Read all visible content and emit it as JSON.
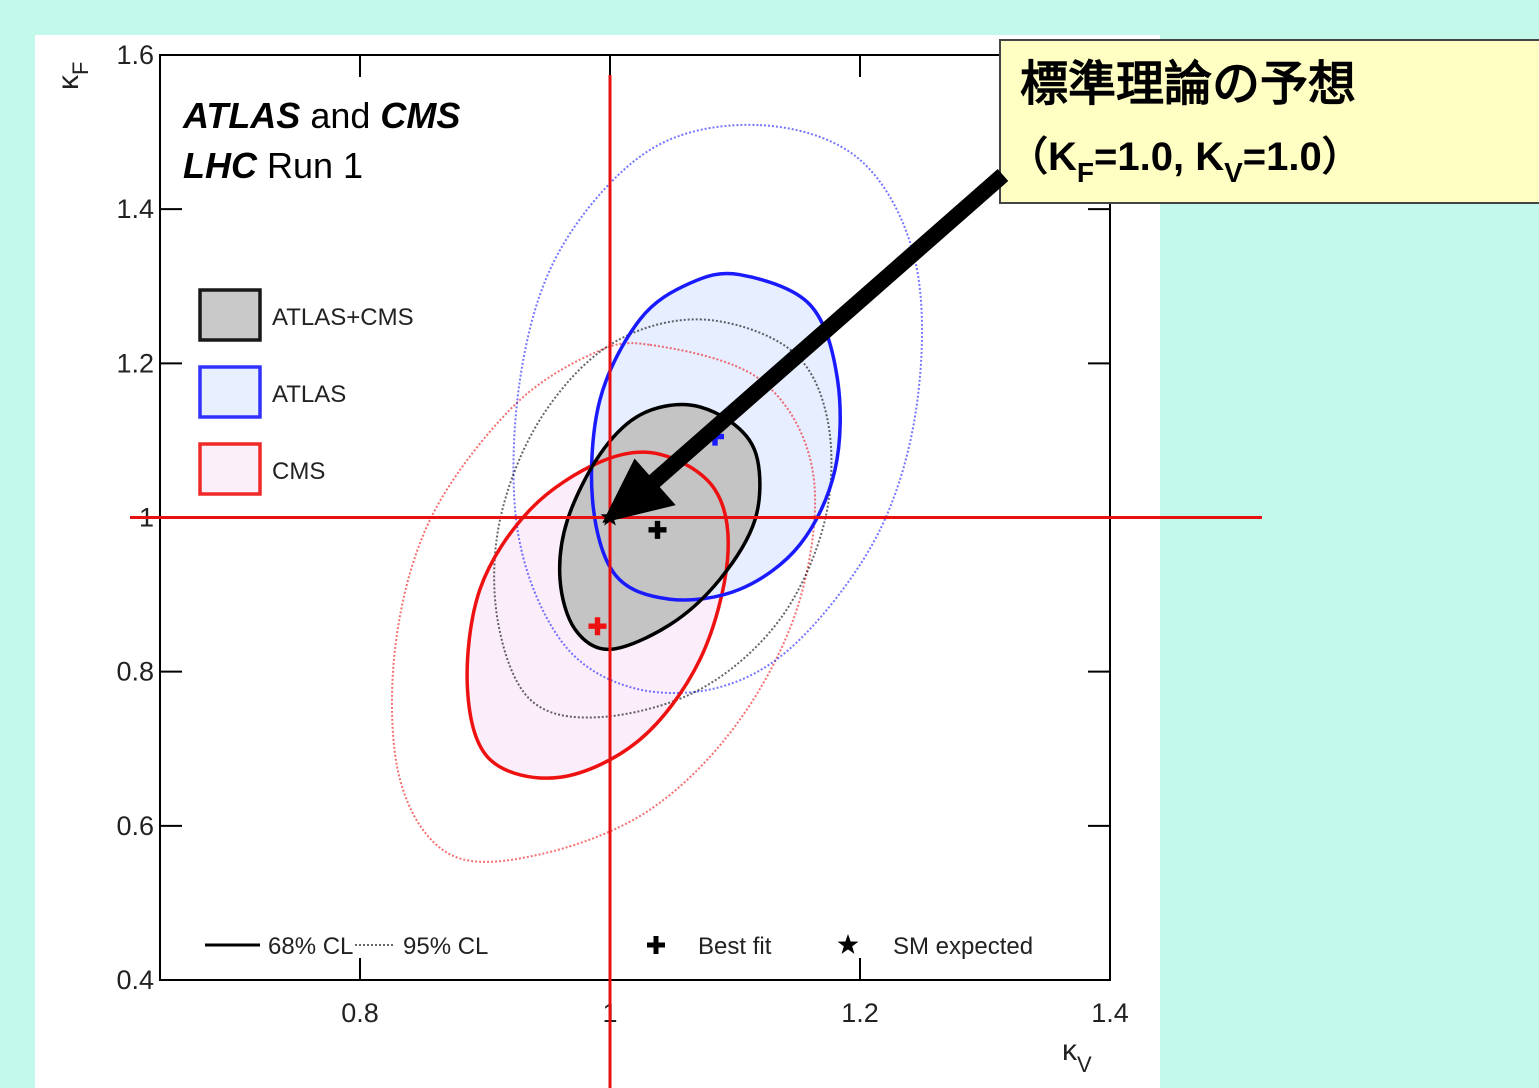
{
  "chart_data": {
    "type": "contour",
    "xlabel": "κ",
    "xlabel_sub": "V",
    "ylabel": "κ",
    "ylabel_sub": "F",
    "xlim": [
      0.64,
      1.4
    ],
    "xticks": [
      0.8,
      1,
      1.2,
      1.4
    ],
    "ylim": [
      0.4,
      1.6
    ],
    "yticks": [
      0.4,
      0.6,
      0.8,
      1,
      1.2,
      1.4,
      1.6
    ],
    "label_lines": [
      [
        "ATLAS",
        " and ",
        "CMS"
      ],
      [
        "LHC",
        " Run 1"
      ]
    ],
    "series": [
      {
        "name": "CMS",
        "color": "#ee1111",
        "fill": "#fbeefa",
        "contour68_x": [
          1.04,
          1.084,
          1.094,
          1.072,
          1.024,
          0.96,
          0.904,
          0.886,
          0.896,
          0.936,
          0.992
        ],
        "contour68_y": [
          1.082,
          1.036,
          0.945,
          0.816,
          0.712,
          0.663,
          0.686,
          0.777,
          0.907,
          1.01,
          1.072
        ],
        "contour95_x": [
          1.032,
          1.12,
          1.162,
          1.152,
          1.104,
          1.032,
          0.944,
          0.872,
          0.832,
          0.828,
          0.856,
          0.92,
          0.984
        ],
        "contour95_y": [
          1.224,
          1.179,
          1.062,
          0.894,
          0.738,
          0.621,
          0.563,
          0.563,
          0.66,
          0.829,
          0.997,
          1.14,
          1.211
        ],
        "best_fit_x": 0.99,
        "best_fit_y": 0.859
      },
      {
        "name": "ATLAS",
        "color": "#1a1aff",
        "fill": "#e6eeff",
        "contour68_x": [
          1.104,
          1.16,
          1.182,
          1.18,
          1.152,
          1.104,
          1.048,
          1.004,
          0.986,
          0.992,
          1.024,
          1.064
        ],
        "contour68_y": [
          1.315,
          1.276,
          1.179,
          1.062,
          0.965,
          0.907,
          0.894,
          0.926,
          1.023,
          1.153,
          1.257,
          1.304
        ],
        "contour95_x": [
          1.12,
          1.2,
          1.244,
          1.246,
          1.216,
          1.152,
          1.088,
          1.016,
          0.96,
          0.926,
          0.928,
          0.96,
          1.032
        ],
        "contour95_y": [
          1.509,
          1.464,
          1.334,
          1.153,
          0.984,
          0.842,
          0.78,
          0.78,
          0.842,
          0.984,
          1.179,
          1.347,
          1.477
        ],
        "best_fit_x": 1.084,
        "best_fit_y": 1.105
      },
      {
        "name": "ATLAS+CMS",
        "color": "#000000",
        "fill": "#c4c4c4",
        "contour68_x": [
          1.064,
          1.1,
          1.118,
          1.116,
          1.088,
          1.048,
          1.0,
          0.972,
          0.96,
          0.966,
          0.992,
          1.024
        ],
        "contour68_y": [
          1.146,
          1.12,
          1.075,
          0.997,
          0.92,
          0.861,
          0.829,
          0.855,
          0.92,
          0.997,
          1.082,
          1.133
        ],
        "contour95_x": [
          1.072,
          1.144,
          1.174,
          1.172,
          1.136,
          1.072,
          0.992,
          0.936,
          0.91,
          0.912,
          0.944,
          1.0
        ],
        "contour95_y": [
          1.257,
          1.218,
          1.127,
          0.997,
          0.868,
          0.777,
          0.741,
          0.764,
          0.868,
          0.997,
          1.127,
          1.224
        ],
        "best_fit_x": 1.038,
        "best_fit_y": 0.984
      }
    ],
    "sm_point": {
      "x": 1,
      "y": 1
    },
    "bottom_legend": [
      "68% CL",
      "95% CL",
      "Best fit",
      "SM expected"
    ],
    "callout": {
      "title": "標準理論の予想",
      "formula": [
        "（K",
        "F",
        "=1.0, K",
        "V",
        "=1.0）"
      ]
    }
  }
}
